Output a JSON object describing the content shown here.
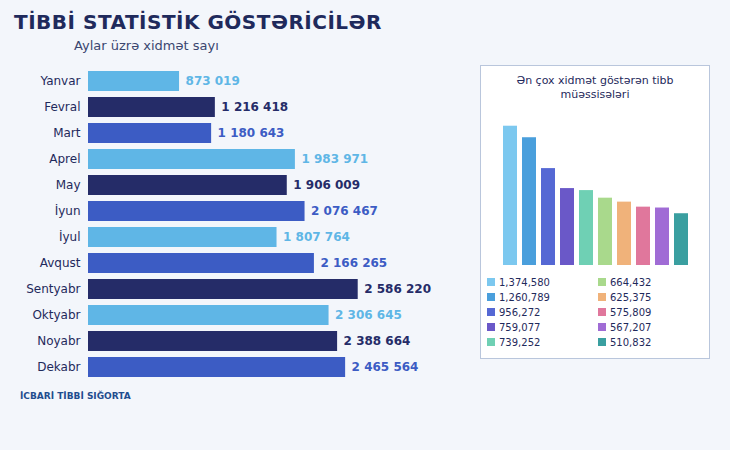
{
  "logo": "İCBARİ TİBBİ SIĞORTA",
  "chart_data": [
    {
      "type": "bar",
      "orientation": "horizontal",
      "title": "TİBBİ STATİSTİK GÖSTƏRİCİLƏR",
      "subtitle": "Aylar üzrə xidmət sayı",
      "categories": [
        "Yanvar",
        "Fevral",
        "Mart",
        "Aprel",
        "May",
        "İyun",
        "İyul",
        "Avqust",
        "Sentyabr",
        "Oktyabr",
        "Noyabr",
        "Dekabr"
      ],
      "values": [
        873019,
        1216418,
        1180643,
        1983971,
        1906009,
        2076467,
        1807764,
        2166265,
        2586220,
        2306645,
        2388664,
        2465564
      ],
      "value_labels": [
        "873 019",
        "1 216 418",
        "1 180 643",
        "1 983 971",
        "1 906 009",
        "2 076 467",
        "1 807 764",
        "2 166 265",
        "2 586 220",
        "2 306 645",
        "2 388 664",
        "2 465 564"
      ],
      "colors": [
        "#5fb6e6",
        "#252c68",
        "#3c5cc4",
        "#5fb6e6",
        "#252c68",
        "#3c5cc4",
        "#5fb6e6",
        "#3c5cc4",
        "#252c68",
        "#5fb6e6",
        "#252c68",
        "#3c5cc4"
      ],
      "xlim": [
        0,
        2800000
      ],
      "tick_labels": "y",
      "data_labels": true,
      "grid": false
    },
    {
      "type": "bar",
      "title": "Ən çox xidmət göstərən tibb müəssisələri",
      "categories": [
        null,
        null,
        null,
        null,
        null,
        null,
        null,
        null,
        null,
        null
      ],
      "values": [
        1374580,
        1260789,
        956272,
        759077,
        739252,
        664432,
        625375,
        575809,
        567207,
        510832
      ],
      "value_labels": [
        "1,374,580",
        "1,260,789",
        "956,272",
        "759,077",
        "739,252",
        "664,432",
        "625,375",
        "575,809",
        "567,207",
        "510,832"
      ],
      "colors": [
        "#7cc8ef",
        "#4a9fdc",
        "#5568d4",
        "#6a58c8",
        "#6fd0b4",
        "#a9d98c",
        "#f0b27a",
        "#e0779c",
        "#a06cd5",
        "#3a9fa0"
      ],
      "ylim": [
        0,
        1500000
      ],
      "tick_labels": false,
      "grid": false
    }
  ]
}
